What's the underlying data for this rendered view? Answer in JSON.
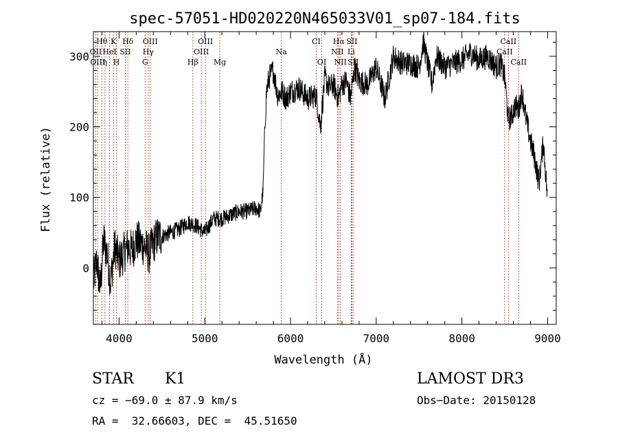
{
  "chart_data": {
    "type": "line",
    "title": "spec-57051-HD020220N465033V01_sp07-184.fits",
    "xlabel": "Wavelength (Å)",
    "ylabel": "Flux (relative)",
    "xlim": [
      3700,
      9100
    ],
    "ylim": [
      -80,
      335
    ],
    "xticks": [
      4000,
      5000,
      6000,
      7000,
      8000,
      9000
    ],
    "yticks": [
      0,
      100,
      200,
      300
    ],
    "grid": false,
    "line_color": "#000000",
    "marker_color": "#c0392b",
    "series": [
      {
        "x": [
          3700,
          3740,
          3780,
          3820,
          3860,
          3900,
          3950,
          4000,
          4050,
          4100,
          4150,
          4200,
          4250,
          4300,
          4350,
          4400,
          4450,
          4500,
          4600,
          4700,
          4800,
          4900,
          5000,
          5100,
          5200,
          5300,
          5400,
          5500,
          5600,
          5650,
          5680,
          5700,
          5720,
          5750,
          5800,
          5850,
          5900,
          5950,
          6000,
          6100,
          6200,
          6300,
          6350,
          6400,
          6450,
          6500,
          6560,
          6600,
          6650,
          6700,
          6750,
          6800,
          6900,
          7000,
          7100,
          7200,
          7300,
          7400,
          7500,
          7550,
          7600,
          7650,
          7700,
          7800,
          7900,
          8000,
          8100,
          8200,
          8300,
          8400,
          8450,
          8500,
          8540,
          8580,
          8620,
          8660,
          8700,
          8750,
          8800,
          8850,
          8900,
          8950,
          9000
        ],
        "y": [
          -20,
          10,
          -30,
          40,
          20,
          -20,
          30,
          10,
          20,
          30,
          25,
          40,
          35,
          30,
          20,
          35,
          45,
          45,
          50,
          55,
          65,
          60,
          50,
          70,
          70,
          75,
          80,
          80,
          85,
          80,
          110,
          200,
          250,
          270,
          280,
          245,
          250,
          240,
          250,
          255,
          240,
          245,
          200,
          270,
          255,
          260,
          240,
          260,
          265,
          240,
          285,
          265,
          260,
          285,
          240,
          300,
          290,
          290,
          285,
          320,
          290,
          260,
          300,
          285,
          290,
          295,
          305,
          295,
          300,
          285,
          290,
          270,
          210,
          215,
          230,
          225,
          250,
          210,
          180,
          155,
          120,
          180,
          95
        ],
        "line_style": "solid"
      }
    ],
    "annotations": [
      {
        "label": "Hθ",
        "x": 3798,
        "row": 1
      },
      {
        "label": "OII",
        "x": 3727,
        "row": 2
      },
      {
        "label": "OIII",
        "x": 3750,
        "row": 3
      },
      {
        "label": "K",
        "x": 3934,
        "row": 1
      },
      {
        "label": "HeI",
        "x": 3889,
        "row": 2
      },
      {
        "label": "η",
        "x": 3835,
        "row": 3
      },
      {
        "label": "SII",
        "x": 4072,
        "row": 2
      },
      {
        "label": "H",
        "x": 3969,
        "row": 3
      },
      {
        "label": "Hδ",
        "x": 4102,
        "row": 1
      },
      {
        "label": "OIII",
        "x": 4363,
        "row": 1
      },
      {
        "label": "Hγ",
        "x": 4340,
        "row": 2
      },
      {
        "label": "G",
        "x": 4304,
        "row": 3
      },
      {
        "label": "OIII",
        "x": 5007,
        "row": 1
      },
      {
        "label": "OIII",
        "x": 4959,
        "row": 2
      },
      {
        "label": "Hβ",
        "x": 4861,
        "row": 3
      },
      {
        "label": "Mg",
        "x": 5175,
        "row": 3
      },
      {
        "label": "Na",
        "x": 5893,
        "row": 2
      },
      {
        "label": "CI",
        "x": 6300,
        "row": 1
      },
      {
        "label": "OI",
        "x": 6364,
        "row": 3
      },
      {
        "label": "Hα",
        "x": 6563,
        "row": 1
      },
      {
        "label": "SII",
        "x": 6716,
        "row": 1
      },
      {
        "label": "NII",
        "x": 6548,
        "row": 2
      },
      {
        "label": "Li",
        "x": 6708,
        "row": 2
      },
      {
        "label": "NII",
        "x": 6583,
        "row": 3
      },
      {
        "label": "SII",
        "x": 6731,
        "row": 3
      },
      {
        "label": "CaII",
        "x": 8542,
        "row": 1
      },
      {
        "label": "CaII",
        "x": 8498,
        "row": 2
      },
      {
        "label": "CaII",
        "x": 8662,
        "row": 3
      }
    ]
  },
  "info": {
    "object": "STAR",
    "class": "K1",
    "survey": "LAMOST DR3",
    "cz": "cz = −69.0 ± 87.9 km/s",
    "obs_date": "Obs−Date: 20150128",
    "coords": "RA =  32.66603, DEC =  45.51650"
  }
}
